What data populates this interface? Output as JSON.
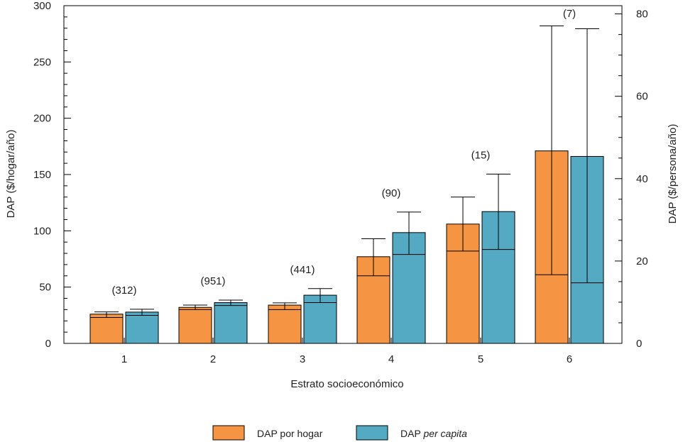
{
  "chart_data": {
    "type": "bar",
    "xlabel": "Estrato socioeconómico",
    "ylabel_left": "DAP ($/hogar/año)",
    "ylabel_right": "DAP ($/persona/año)",
    "ylim_left": [
      0,
      300
    ],
    "ylim_right": [
      0,
      82
    ],
    "yticks_left": [
      0,
      50,
      100,
      150,
      200,
      250,
      300
    ],
    "yticks_right": [
      0,
      20,
      40,
      60,
      80
    ],
    "categories": [
      "1",
      "2",
      "3",
      "4",
      "5",
      "6"
    ],
    "sample_sizes": [
      "(312)",
      "(951)",
      "(441)",
      "(90)",
      "(15)",
      "(7)"
    ],
    "grid": false,
    "legend_position": "bottom-center",
    "series": [
      {
        "name": "DAP por hogar",
        "axis": "left",
        "color": "#f59443",
        "values": [
          26,
          32,
          34,
          77,
          106,
          171
        ],
        "ci_low": [
          23,
          30,
          30,
          60,
          82,
          61
        ],
        "ci_high": [
          28,
          34,
          36,
          93,
          130,
          282
        ]
      },
      {
        "name_plain": "DAP ",
        "name_italic": "per capita",
        "axis": "right",
        "color": "#54aac2",
        "values": [
          7.6,
          9.9,
          11.7,
          26.9,
          32.0,
          45.4
        ],
        "ci_low": [
          6.8,
          9.2,
          9.9,
          21.6,
          22.8,
          14.7
        ],
        "ci_high": [
          8.3,
          10.5,
          13.3,
          31.9,
          41.1,
          76.4
        ]
      }
    ]
  }
}
